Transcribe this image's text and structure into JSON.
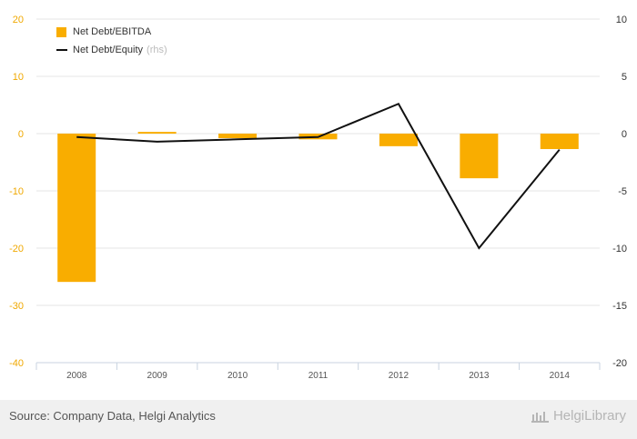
{
  "chart_data": {
    "type": "bar+line",
    "categories": [
      "2008",
      "2009",
      "2010",
      "2011",
      "2012",
      "2013",
      "2014"
    ],
    "series": [
      {
        "name": "Net Debt/EBITDA",
        "type": "bar",
        "axis": "left",
        "color": "#f9ad00",
        "values": [
          -25.9,
          0.3,
          -0.8,
          -1.0,
          -2.2,
          -7.8,
          -2.7
        ]
      },
      {
        "name": "Net Debt/Equity",
        "type": "line",
        "axis": "right",
        "color": "#111111",
        "values": [
          -0.3,
          -0.7,
          -0.5,
          -0.3,
          2.6,
          -10.0,
          -1.4
        ]
      }
    ],
    "left_axis": {
      "min": -40,
      "max": 20,
      "ticks": [
        "20",
        "10",
        "0",
        "-10",
        "-20",
        "-30",
        "-40"
      ],
      "color": "#f0a800"
    },
    "right_axis": {
      "min": -20,
      "max": 10,
      "ticks": [
        "10",
        "5",
        "0",
        "-5",
        "-10",
        "-15",
        "-20"
      ]
    },
    "legend": {
      "position": "top-left",
      "rhs_note": "(rhs)"
    },
    "grid": true
  },
  "footer": {
    "source": "Source: Company Data, Helgi Analytics",
    "logo": "HelgiLibrary"
  }
}
